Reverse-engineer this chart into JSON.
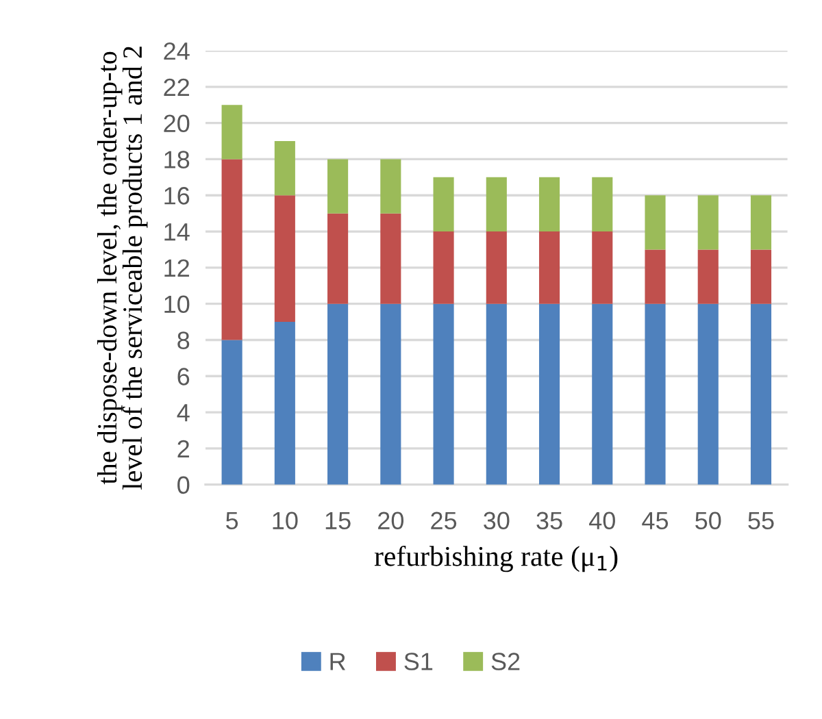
{
  "chart_data": {
    "type": "bar",
    "stacked": true,
    "xlabel": "refurbishing rate (μ$_{1}$)",
    "ylabel": "the dispose-down level, the order-up-to\nlevel of the serviceable products 1 and 2",
    "categories": [
      "5",
      "10",
      "15",
      "20",
      "25",
      "30",
      "35",
      "40",
      "45",
      "50",
      "55"
    ],
    "series": [
      {
        "name": "R",
        "color": "#4f81bd",
        "values": [
          8,
          9,
          10,
          10,
          10,
          10,
          10,
          10,
          10,
          10,
          10
        ]
      },
      {
        "name": "S1",
        "color": "#c0504d",
        "values": [
          10,
          7,
          5,
          5,
          4,
          4,
          4,
          4,
          3,
          3,
          3
        ]
      },
      {
        "name": "S2",
        "color": "#9bbb59",
        "values": [
          3,
          3,
          3,
          3,
          3,
          3,
          3,
          3,
          3,
          3,
          3
        ]
      }
    ],
    "ylim": [
      0,
      24
    ],
    "yticks": [
      0,
      2,
      4,
      6,
      8,
      10,
      12,
      14,
      16,
      18,
      20,
      22,
      24
    ],
    "grid": "y",
    "legend": "bottom"
  }
}
